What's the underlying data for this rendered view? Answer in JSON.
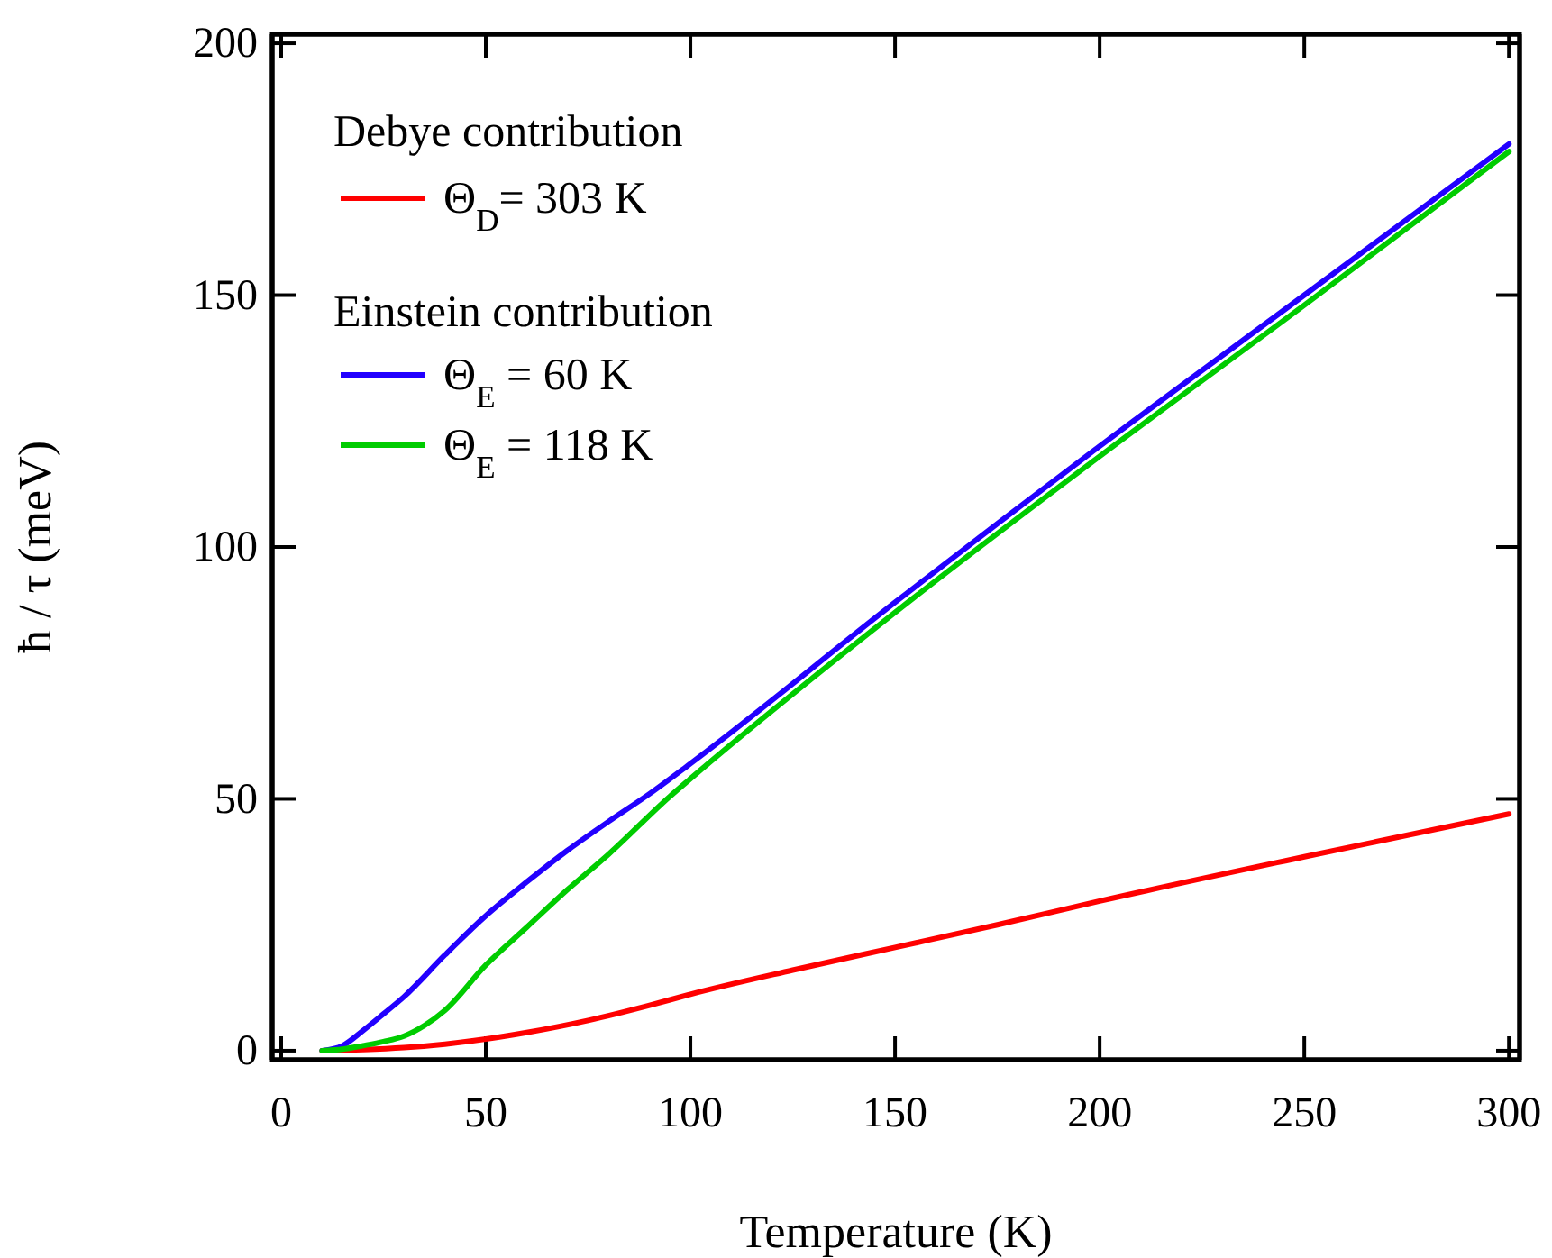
{
  "chart_data": {
    "type": "line",
    "xlabel": "Temperature (K)",
    "ylabel": "ħ / τ  (meV)",
    "xlim": [
      -2.2,
      302.6
    ],
    "ylim": [
      -1.8,
      201.8
    ],
    "xticks": [
      0,
      50,
      100,
      150,
      200,
      250,
      300
    ],
    "yticks": [
      0,
      50,
      100,
      150,
      200
    ],
    "grid": false,
    "legend": "top left",
    "marker": "none",
    "line_style": "solid",
    "annotations": [
      "Debye contribution",
      "Einstein contribution"
    ],
    "series": [
      {
        "name": "Θ$_{D}$= 303 K",
        "color": "#ff0000",
        "x": [
          10,
          20,
          30,
          40,
          50,
          60,
          75,
          90,
          100,
          125,
          150,
          175,
          200,
          250,
          300
        ],
        "values": [
          0,
          0.2,
          0.6,
          1.3,
          2.3,
          3.6,
          6,
          9,
          11.2,
          16,
          20.5,
          25,
          29.7,
          38.5,
          47
        ]
      },
      {
        "name": "Θ$_{E}$ = 60 K",
        "color": "#2200ff",
        "x": [
          10,
          15,
          20,
          25,
          30,
          40,
          50,
          60,
          70,
          80,
          90,
          100,
          150,
          200,
          250,
          300
        ],
        "values": [
          0,
          1,
          4,
          7.3,
          10.7,
          19,
          26.8,
          33.5,
          39.8,
          45.5,
          51,
          57,
          89,
          120,
          150,
          180
        ]
      },
      {
        "name": "Θ$_{E}$ = 118 K",
        "color": "#00cc00",
        "x": [
          10,
          15,
          20,
          25,
          30,
          35,
          40,
          50,
          60,
          70,
          80,
          95,
          100,
          150,
          200,
          250,
          300
        ],
        "values": [
          0,
          0.3,
          1,
          1.8,
          2.9,
          5,
          8,
          17,
          24.5,
          32,
          39,
          50.5,
          54,
          87,
          118,
          148,
          178.5
        ]
      }
    ]
  }
}
